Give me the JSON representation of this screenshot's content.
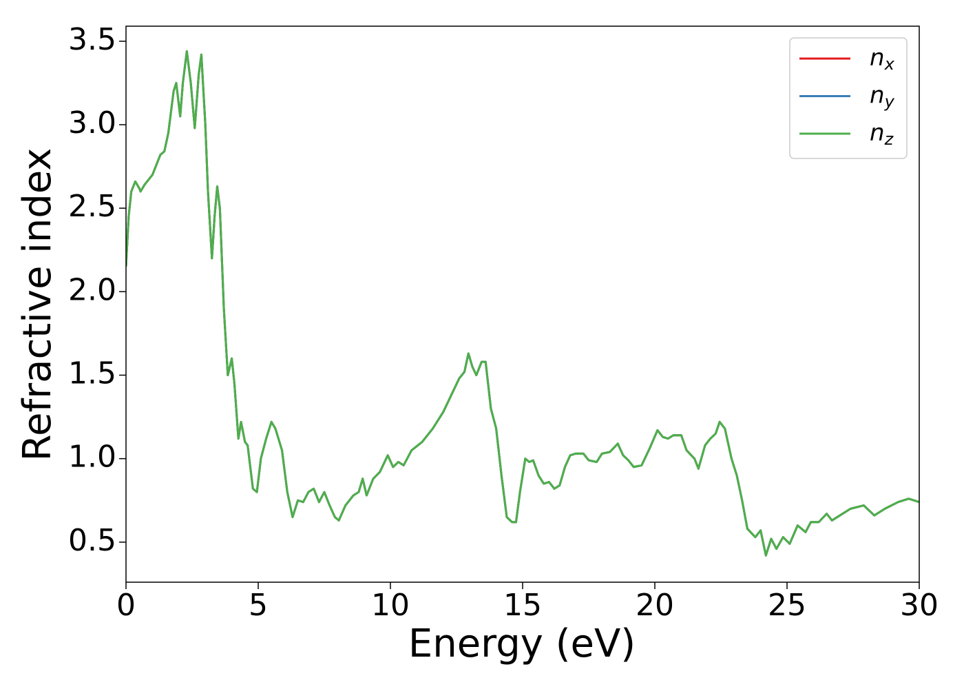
{
  "chart_data": {
    "type": "line",
    "xlabel": "Energy (eV)",
    "ylabel": "Refractive index",
    "x": [
      0,
      0.1,
      0.2,
      0.35,
      0.5,
      0.55,
      0.7,
      1.0,
      1.3,
      1.45,
      1.6,
      1.8,
      1.9,
      2.05,
      2.15,
      2.3,
      2.45,
      2.6,
      2.75,
      2.85,
      3.0,
      3.1,
      3.25,
      3.35,
      3.45,
      3.55,
      3.7,
      3.85,
      4.0,
      4.1,
      4.25,
      4.35,
      4.5,
      4.6,
      4.8,
      4.95,
      5.1,
      5.3,
      5.5,
      5.65,
      5.9,
      6.1,
      6.3,
      6.5,
      6.7,
      6.9,
      7.1,
      7.2,
      7.3,
      7.5,
      7.7,
      7.9,
      8.05,
      8.3,
      8.6,
      8.8,
      8.95,
      9.1,
      9.35,
      9.6,
      9.9,
      10.1,
      10.3,
      10.5,
      10.8,
      11.2,
      11.6,
      12.0,
      12.3,
      12.6,
      12.8,
      12.95,
      13.1,
      13.25,
      13.45,
      13.6,
      13.8,
      14.0,
      14.2,
      14.4,
      14.6,
      14.75,
      14.9,
      15.1,
      15.25,
      15.4,
      15.6,
      15.8,
      16.0,
      16.2,
      16.4,
      16.6,
      16.8,
      17.0,
      17.3,
      17.5,
      17.8,
      18.0,
      18.3,
      18.6,
      18.8,
      19.0,
      19.2,
      19.5,
      19.8,
      20.1,
      20.3,
      20.5,
      20.7,
      21.0,
      21.2,
      21.5,
      21.65,
      21.9,
      22.1,
      22.3,
      22.45,
      22.65,
      22.9,
      23.1,
      23.3,
      23.5,
      23.8,
      24.0,
      24.2,
      24.4,
      24.6,
      24.85,
      25.1,
      25.4,
      25.7,
      25.9,
      26.2,
      26.5,
      26.7,
      27.0,
      27.4,
      27.9,
      28.3,
      28.7,
      29.2,
      29.6,
      30
    ],
    "series": [
      {
        "name": "nx",
        "color": "#e41a1c",
        "values": [
          2.15,
          2.45,
          2.6,
          2.66,
          2.62,
          2.6,
          2.64,
          2.7,
          2.82,
          2.84,
          2.95,
          3.2,
          3.25,
          3.05,
          3.25,
          3.44,
          3.25,
          2.98,
          3.3,
          3.42,
          3.0,
          2.6,
          2.2,
          2.45,
          2.63,
          2.5,
          1.9,
          1.5,
          1.6,
          1.45,
          1.12,
          1.22,
          1.1,
          1.08,
          0.82,
          0.8,
          1.0,
          1.12,
          1.22,
          1.18,
          1.05,
          0.8,
          0.65,
          0.75,
          0.74,
          0.8,
          0.82,
          0.78,
          0.74,
          0.8,
          0.72,
          0.65,
          0.63,
          0.72,
          0.78,
          0.8,
          0.88,
          0.78,
          0.88,
          0.92,
          1.02,
          0.95,
          0.98,
          0.96,
          1.05,
          1.1,
          1.18,
          1.28,
          1.38,
          1.48,
          1.52,
          1.63,
          1.55,
          1.5,
          1.58,
          1.58,
          1.3,
          1.18,
          0.9,
          0.65,
          0.62,
          0.62,
          0.8,
          1.0,
          0.98,
          0.99,
          0.9,
          0.85,
          0.86,
          0.82,
          0.84,
          0.95,
          1.02,
          1.03,
          1.03,
          0.99,
          0.98,
          1.03,
          1.04,
          1.09,
          1.02,
          0.99,
          0.95,
          0.96,
          1.06,
          1.17,
          1.13,
          1.12,
          1.14,
          1.14,
          1.05,
          1.0,
          0.94,
          1.08,
          1.12,
          1.15,
          1.22,
          1.18,
          1.0,
          0.9,
          0.75,
          0.58,
          0.53,
          0.57,
          0.42,
          0.52,
          0.46,
          0.53,
          0.49,
          0.6,
          0.56,
          0.62,
          0.62,
          0.67,
          0.63,
          0.66,
          0.7,
          0.72,
          0.66,
          0.7,
          0.74,
          0.76,
          0.74
        ]
      },
      {
        "name": "ny",
        "color": "#377eb8",
        "values": [
          2.15,
          2.45,
          2.6,
          2.66,
          2.62,
          2.6,
          2.64,
          2.7,
          2.82,
          2.84,
          2.95,
          3.2,
          3.25,
          3.05,
          3.25,
          3.44,
          3.25,
          2.98,
          3.3,
          3.42,
          3.0,
          2.6,
          2.2,
          2.45,
          2.63,
          2.5,
          1.9,
          1.5,
          1.6,
          1.45,
          1.12,
          1.22,
          1.1,
          1.08,
          0.82,
          0.8,
          1.0,
          1.12,
          1.22,
          1.18,
          1.05,
          0.8,
          0.65,
          0.75,
          0.74,
          0.8,
          0.82,
          0.78,
          0.74,
          0.8,
          0.72,
          0.65,
          0.63,
          0.72,
          0.78,
          0.8,
          0.88,
          0.78,
          0.88,
          0.92,
          1.02,
          0.95,
          0.98,
          0.96,
          1.05,
          1.1,
          1.18,
          1.28,
          1.38,
          1.48,
          1.52,
          1.63,
          1.55,
          1.5,
          1.58,
          1.58,
          1.3,
          1.18,
          0.9,
          0.65,
          0.62,
          0.62,
          0.8,
          1.0,
          0.98,
          0.99,
          0.9,
          0.85,
          0.86,
          0.82,
          0.84,
          0.95,
          1.02,
          1.03,
          1.03,
          0.99,
          0.98,
          1.03,
          1.04,
          1.09,
          1.02,
          0.99,
          0.95,
          0.96,
          1.06,
          1.17,
          1.13,
          1.12,
          1.14,
          1.14,
          1.05,
          1.0,
          0.94,
          1.08,
          1.12,
          1.15,
          1.22,
          1.18,
          1.0,
          0.9,
          0.75,
          0.58,
          0.53,
          0.57,
          0.42,
          0.52,
          0.46,
          0.53,
          0.49,
          0.6,
          0.56,
          0.62,
          0.62,
          0.67,
          0.63,
          0.66,
          0.7,
          0.72,
          0.66,
          0.7,
          0.74,
          0.76,
          0.74
        ]
      },
      {
        "name": "nz",
        "color": "#4daf4a",
        "values": [
          2.15,
          2.45,
          2.6,
          2.66,
          2.62,
          2.6,
          2.64,
          2.7,
          2.82,
          2.84,
          2.95,
          3.2,
          3.25,
          3.05,
          3.25,
          3.44,
          3.25,
          2.98,
          3.3,
          3.42,
          3.0,
          2.6,
          2.2,
          2.45,
          2.63,
          2.5,
          1.9,
          1.5,
          1.6,
          1.45,
          1.12,
          1.22,
          1.1,
          1.08,
          0.82,
          0.8,
          1.0,
          1.12,
          1.22,
          1.18,
          1.05,
          0.8,
          0.65,
          0.75,
          0.74,
          0.8,
          0.82,
          0.78,
          0.74,
          0.8,
          0.72,
          0.65,
          0.63,
          0.72,
          0.78,
          0.8,
          0.88,
          0.78,
          0.88,
          0.92,
          1.02,
          0.95,
          0.98,
          0.96,
          1.05,
          1.1,
          1.18,
          1.28,
          1.38,
          1.48,
          1.52,
          1.63,
          1.55,
          1.5,
          1.58,
          1.58,
          1.3,
          1.18,
          0.9,
          0.65,
          0.62,
          0.62,
          0.8,
          1.0,
          0.98,
          0.99,
          0.9,
          0.85,
          0.86,
          0.82,
          0.84,
          0.95,
          1.02,
          1.03,
          1.03,
          0.99,
          0.98,
          1.03,
          1.04,
          1.09,
          1.02,
          0.99,
          0.95,
          0.96,
          1.06,
          1.17,
          1.13,
          1.12,
          1.14,
          1.14,
          1.05,
          1.0,
          0.94,
          1.08,
          1.12,
          1.15,
          1.22,
          1.18,
          1.0,
          0.9,
          0.75,
          0.58,
          0.53,
          0.57,
          0.42,
          0.52,
          0.46,
          0.53,
          0.49,
          0.6,
          0.56,
          0.62,
          0.62,
          0.67,
          0.63,
          0.66,
          0.7,
          0.72,
          0.66,
          0.7,
          0.74,
          0.76,
          0.74
        ]
      }
    ],
    "xlim": [
      0,
      30
    ],
    "xticks": [
      0,
      5,
      10,
      15,
      20,
      25,
      30
    ],
    "ylim": [
      0.26,
      3.59
    ],
    "yticks": [
      0.5,
      {
        "value": 1,
        "label": "1.0"
      },
      1.5,
      {
        "value": 2,
        "label": "2.0"
      },
      2.5,
      {
        "value": 3,
        "label": "3.0"
      },
      3.5
    ],
    "grid": false,
    "legend": "upper right"
  }
}
